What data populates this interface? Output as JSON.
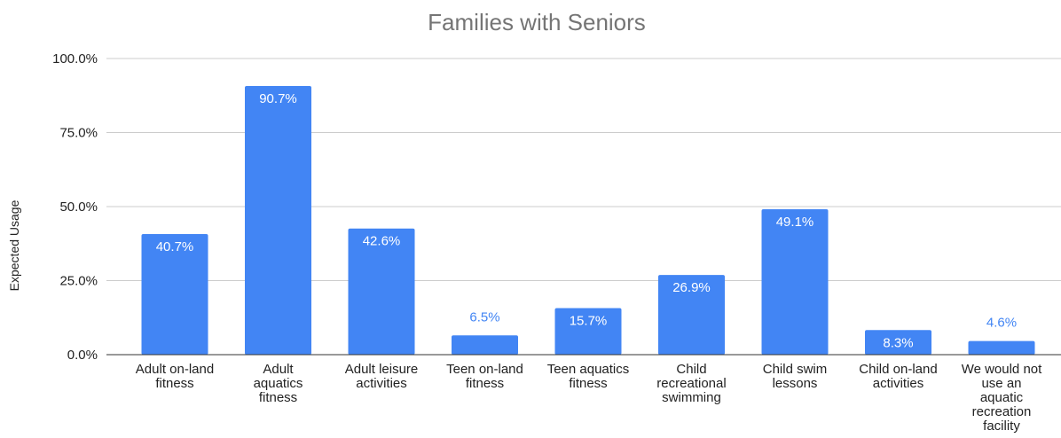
{
  "chart_data": {
    "type": "bar",
    "title": "Families with Seniors",
    "xlabel": "",
    "ylabel": "Expected Usage",
    "ylim": [
      0,
      100
    ],
    "y_ticks": [
      "0.0%",
      "25.0%",
      "50.0%",
      "75.0%",
      "100.0%"
    ],
    "grid": true,
    "bar_color": "#4285f4",
    "label_inside_color": "#ffffff",
    "label_outside_color": "#4285f4",
    "categories": [
      "Adult on-land fitness",
      "Adult aquatics fitness",
      "Adult leisure activities",
      "Teen on-land fitness",
      "Teen aquatics fitness",
      "Child recreational swimming",
      "Child swim lessons",
      "Child on-land activities",
      "We would not use an aquatic recreation facility"
    ],
    "category_lines": [
      [
        "Adult on-land",
        "fitness"
      ],
      [
        "Adult",
        "aquatics",
        "fitness"
      ],
      [
        "Adult leisure",
        "activities"
      ],
      [
        "Teen on-land",
        "fitness"
      ],
      [
        "Teen aquatics",
        "fitness"
      ],
      [
        "Child",
        "recreational",
        "swimming"
      ],
      [
        "Child swim",
        "lessons"
      ],
      [
        "Child on-land",
        "activities"
      ],
      [
        "We would not",
        "use an",
        "aquatic",
        "recreation",
        "facility"
      ]
    ],
    "values": [
      40.7,
      90.7,
      42.6,
      6.5,
      15.7,
      26.9,
      49.1,
      8.3,
      4.6
    ],
    "value_labels": [
      "40.7%",
      "90.7%",
      "42.6%",
      "6.5%",
      "15.7%",
      "26.9%",
      "49.1%",
      "8.3%",
      "4.6%"
    ]
  }
}
